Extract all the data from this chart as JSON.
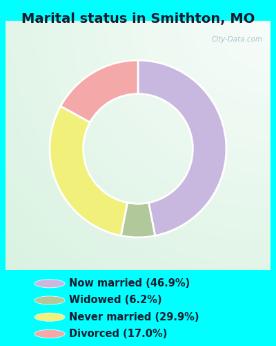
{
  "title": "Marital status in Smithton, MO",
  "slices": [
    46.9,
    6.2,
    29.9,
    17.0
  ],
  "labels": [
    "Now married (46.9%)",
    "Widowed (6.2%)",
    "Never married (29.9%)",
    "Divorced (17.0%)"
  ],
  "colors": [
    "#c8b8e0",
    "#b0c89a",
    "#f0f07a",
    "#f4a8a8"
  ],
  "legend_colors": [
    "#c8b8e0",
    "#b0c89a",
    "#f0f07a",
    "#f4a8a8"
  ],
  "chart_bg_top_left": "#c8ede0",
  "chart_bg_bottom_right": "#e8f5e8",
  "outer_bg": "#00ffff",
  "title_fontsize": 14,
  "donut_width": 0.38,
  "start_angle": 90,
  "figsize": [
    4.0,
    5.0
  ],
  "dpi": 100,
  "watermark": "City-Data.com",
  "title_color": "#1a1a2e"
}
